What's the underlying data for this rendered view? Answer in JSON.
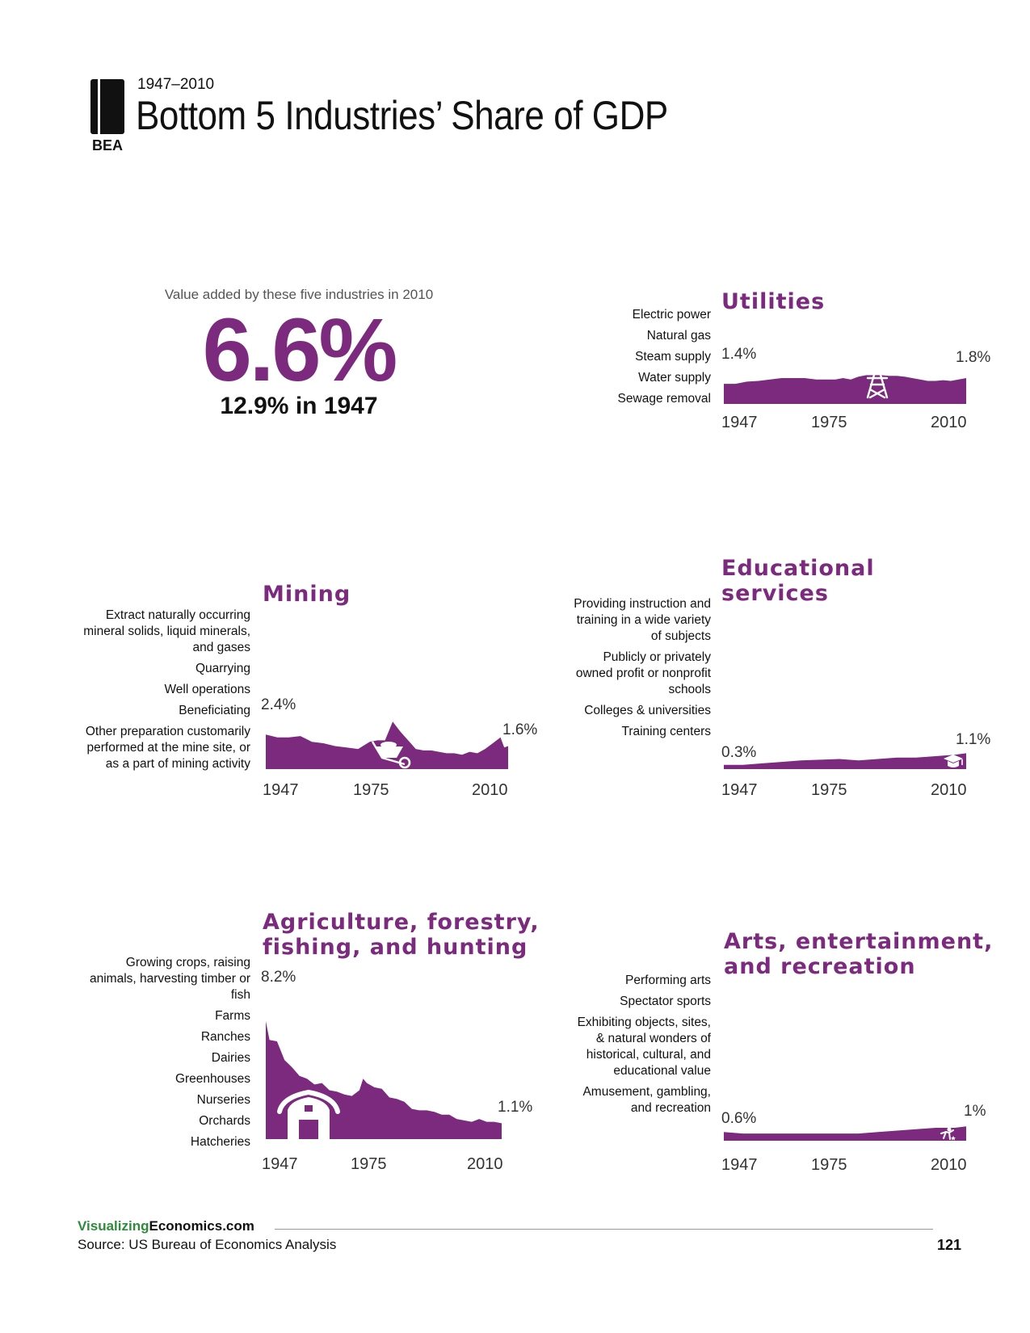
{
  "header": {
    "logo_text": "BEA",
    "subtitle": "1947–2010",
    "title": "Bottom 5 Industries’ Share of GDP"
  },
  "kpi": {
    "caption": "Value added by these five industries in 2010",
    "value": "6.6%",
    "sub": "12.9% in 1947"
  },
  "colors": {
    "accent": "#7b2a7e",
    "brand_green": "#2e8b3a"
  },
  "panels": {
    "utilities": {
      "title": "Utilities",
      "items": [
        "Electric power",
        "Natural gas",
        "Steam supply",
        "Water supply",
        "Sewage removal"
      ],
      "start_label": "1.4%",
      "end_label": "1.8%",
      "years": [
        "1947",
        "1975",
        "2010"
      ],
      "icon": "power-tower-icon"
    },
    "mining": {
      "title": "Mining",
      "items": [
        "Extract naturally occurring mineral solids, liquid minerals, and gases",
        "Quarrying",
        "Well operations",
        "Beneficiating",
        "Other preparation customarily performed at the mine site, or as a part of mining activity"
      ],
      "start_label": "2.4%",
      "end_label": "1.6%",
      "years": [
        "1947",
        "1975",
        "2010"
      ],
      "icon": "wheelbarrow-icon"
    },
    "education": {
      "title_line1": "Educational",
      "title_line2": "services",
      "items": [
        "Providing instruction and training in a wide variety of subjects",
        "Publicly or privately owned profit or nonprofit schools",
        "Colleges & universities",
        "Training centers"
      ],
      "start_label": "0.3%",
      "end_label": "1.1%",
      "years": [
        "1947",
        "1975",
        "2010"
      ],
      "icon": "graduation-cap-icon"
    },
    "agriculture": {
      "title_line1": "Agriculture, forestry,",
      "title_line2": "fishing, and hunting",
      "items": [
        "Growing crops, raising animals, harvesting timber or fish",
        "Farms",
        "Ranches",
        "Dairies",
        "Greenhouses",
        "Nurseries",
        "Orchards",
        "Hatcheries"
      ],
      "start_label": "8.2%",
      "end_label": "1.1%",
      "years": [
        "1947",
        "1975",
        "2010"
      ],
      "icon": "barn-icon"
    },
    "arts": {
      "title_line1": "Arts, entertainment,",
      "title_line2": "and recreation",
      "items": [
        "Performing arts",
        "Spectator sports",
        "Exhibiting objects, sites, & natural wonders of historical, cultural, and educational value",
        "Amusement, gambling, and recreation"
      ],
      "start_label": "0.6%",
      "end_label": "1%",
      "years": [
        "1947",
        "1975",
        "2010"
      ],
      "icon": "performer-icon"
    }
  },
  "chart_data": [
    {
      "type": "area",
      "id": "utilities",
      "ylim": [
        0,
        8.2
      ],
      "x": [
        1947,
        1950,
        1953,
        1956,
        1959,
        1962,
        1965,
        1968,
        1971,
        1974,
        1976,
        1978,
        1980,
        1982,
        1984,
        1986,
        1988,
        1990,
        1992,
        1994,
        1996,
        1998,
        2000,
        2002,
        2004,
        2006,
        2008,
        2010
      ],
      "values": [
        1.4,
        1.4,
        1.55,
        1.6,
        1.7,
        1.8,
        1.8,
        1.8,
        1.7,
        1.7,
        1.7,
        1.8,
        1.7,
        1.9,
        2.0,
        2.0,
        2.0,
        1.95,
        1.95,
        1.9,
        1.8,
        1.7,
        1.6,
        1.6,
        1.65,
        1.6,
        1.7,
        1.8
      ]
    },
    {
      "type": "area",
      "id": "mining",
      "ylim": [
        0,
        8.2
      ],
      "x": [
        1947,
        1950,
        1953,
        1956,
        1959,
        1962,
        1965,
        1968,
        1971,
        1974,
        1976,
        1978,
        1980,
        1982,
        1984,
        1986,
        1988,
        1990,
        1992,
        1994,
        1996,
        1998,
        2000,
        2002,
        2004,
        2006,
        2008,
        2009,
        2010
      ],
      "values": [
        2.4,
        2.2,
        2.2,
        2.3,
        1.9,
        1.8,
        1.6,
        1.5,
        1.4,
        1.9,
        2.0,
        2.0,
        3.3,
        2.6,
        2.0,
        1.4,
        1.3,
        1.3,
        1.2,
        1.1,
        1.1,
        1.0,
        1.2,
        1.1,
        1.4,
        1.8,
        2.2,
        1.5,
        1.6
      ]
    },
    {
      "type": "area",
      "id": "education",
      "ylim": [
        0,
        8.2
      ],
      "x": [
        1947,
        1952,
        1957,
        1962,
        1967,
        1972,
        1977,
        1982,
        1987,
        1992,
        1997,
        2002,
        2007,
        2010
      ],
      "values": [
        0.3,
        0.3,
        0.4,
        0.5,
        0.6,
        0.65,
        0.7,
        0.6,
        0.7,
        0.8,
        0.8,
        0.9,
        1.0,
        1.1
      ]
    },
    {
      "type": "area",
      "id": "agriculture",
      "ylim": [
        0,
        8.2
      ],
      "x": [
        1947,
        1948,
        1950,
        1952,
        1954,
        1956,
        1958,
        1960,
        1962,
        1964,
        1966,
        1968,
        1970,
        1972,
        1973,
        1974,
        1976,
        1978,
        1980,
        1982,
        1984,
        1986,
        1988,
        1990,
        1992,
        1994,
        1996,
        1998,
        2000,
        2002,
        2004,
        2006,
        2008,
        2010
      ],
      "values": [
        8.2,
        6.9,
        6.8,
        5.5,
        5.0,
        4.4,
        4.2,
        3.8,
        3.9,
        3.4,
        3.3,
        3.1,
        3.0,
        3.4,
        4.2,
        3.9,
        3.6,
        3.5,
        2.9,
        2.8,
        2.6,
        2.1,
        2.0,
        2.0,
        1.9,
        1.7,
        1.7,
        1.4,
        1.3,
        1.2,
        1.4,
        1.2,
        1.2,
        1.1
      ]
    },
    {
      "type": "area",
      "id": "arts",
      "ylim": [
        0,
        8.2
      ],
      "x": [
        1947,
        1952,
        1957,
        1962,
        1967,
        1972,
        1977,
        1982,
        1987,
        1992,
        1997,
        2002,
        2007,
        2010
      ],
      "values": [
        0.6,
        0.5,
        0.5,
        0.5,
        0.5,
        0.5,
        0.5,
        0.5,
        0.6,
        0.7,
        0.8,
        0.9,
        0.9,
        1.0
      ]
    }
  ]
}
